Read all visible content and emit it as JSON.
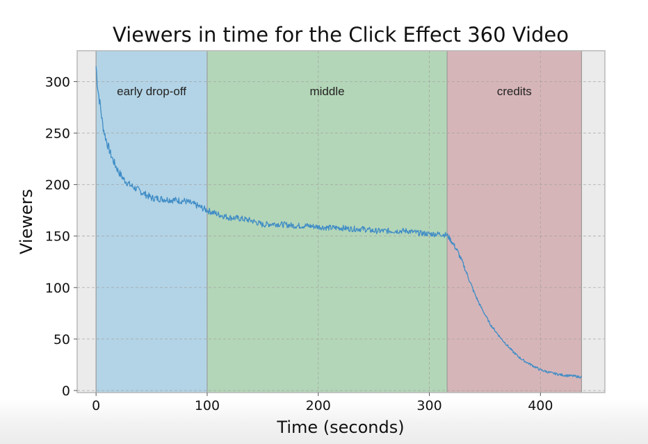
{
  "chart_data": {
    "type": "line",
    "title": "Viewers in time for the Click Effect 360 Video",
    "xlabel": "Time (seconds)",
    "ylabel": "Viewers",
    "xlim": [
      -17,
      458
    ],
    "ylim": [
      -2,
      330
    ],
    "xticks": [
      0,
      100,
      200,
      300,
      400
    ],
    "yticks": [
      0,
      50,
      100,
      150,
      200,
      250,
      300
    ],
    "grid": true,
    "regions": [
      {
        "name": "early drop-off",
        "x_start": 0,
        "x_end": 100,
        "color": "#b3d4e6"
      },
      {
        "name": "middle",
        "x_start": 100,
        "x_end": 316,
        "color": "#b4d6b8"
      },
      {
        "name": "credits",
        "x_start": 316,
        "x_end": 437,
        "color": "#d6b5b8"
      }
    ],
    "series": [
      {
        "color": "#3f8cc6",
        "x": [
          0,
          1,
          2,
          4,
          6,
          8,
          10,
          13,
          16,
          20,
          25,
          30,
          36,
          42,
          50,
          60,
          70,
          80,
          90,
          100,
          110,
          120,
          130,
          140,
          150,
          160,
          170,
          180,
          190,
          200,
          210,
          220,
          230,
          240,
          250,
          260,
          270,
          280,
          290,
          300,
          310,
          316,
          320,
          325,
          330,
          335,
          340,
          345,
          350,
          355,
          360,
          365,
          370,
          375,
          380,
          385,
          390,
          395,
          400,
          410,
          420,
          430,
          437
        ],
        "y": [
          315,
          300,
          290,
          275,
          258,
          248,
          240,
          230,
          222,
          213,
          205,
          200,
          196,
          192,
          187,
          186,
          185,
          184,
          180,
          175,
          171,
          168,
          167,
          165,
          161,
          162,
          161,
          160,
          160,
          159,
          158,
          158,
          157,
          157,
          155,
          155,
          155,
          155,
          153,
          152,
          152,
          151,
          145,
          136,
          124,
          110,
          96,
          84,
          74,
          64,
          57,
          50,
          44,
          38,
          33,
          29,
          26,
          23,
          20,
          17,
          15,
          14,
          13
        ]
      }
    ]
  }
}
